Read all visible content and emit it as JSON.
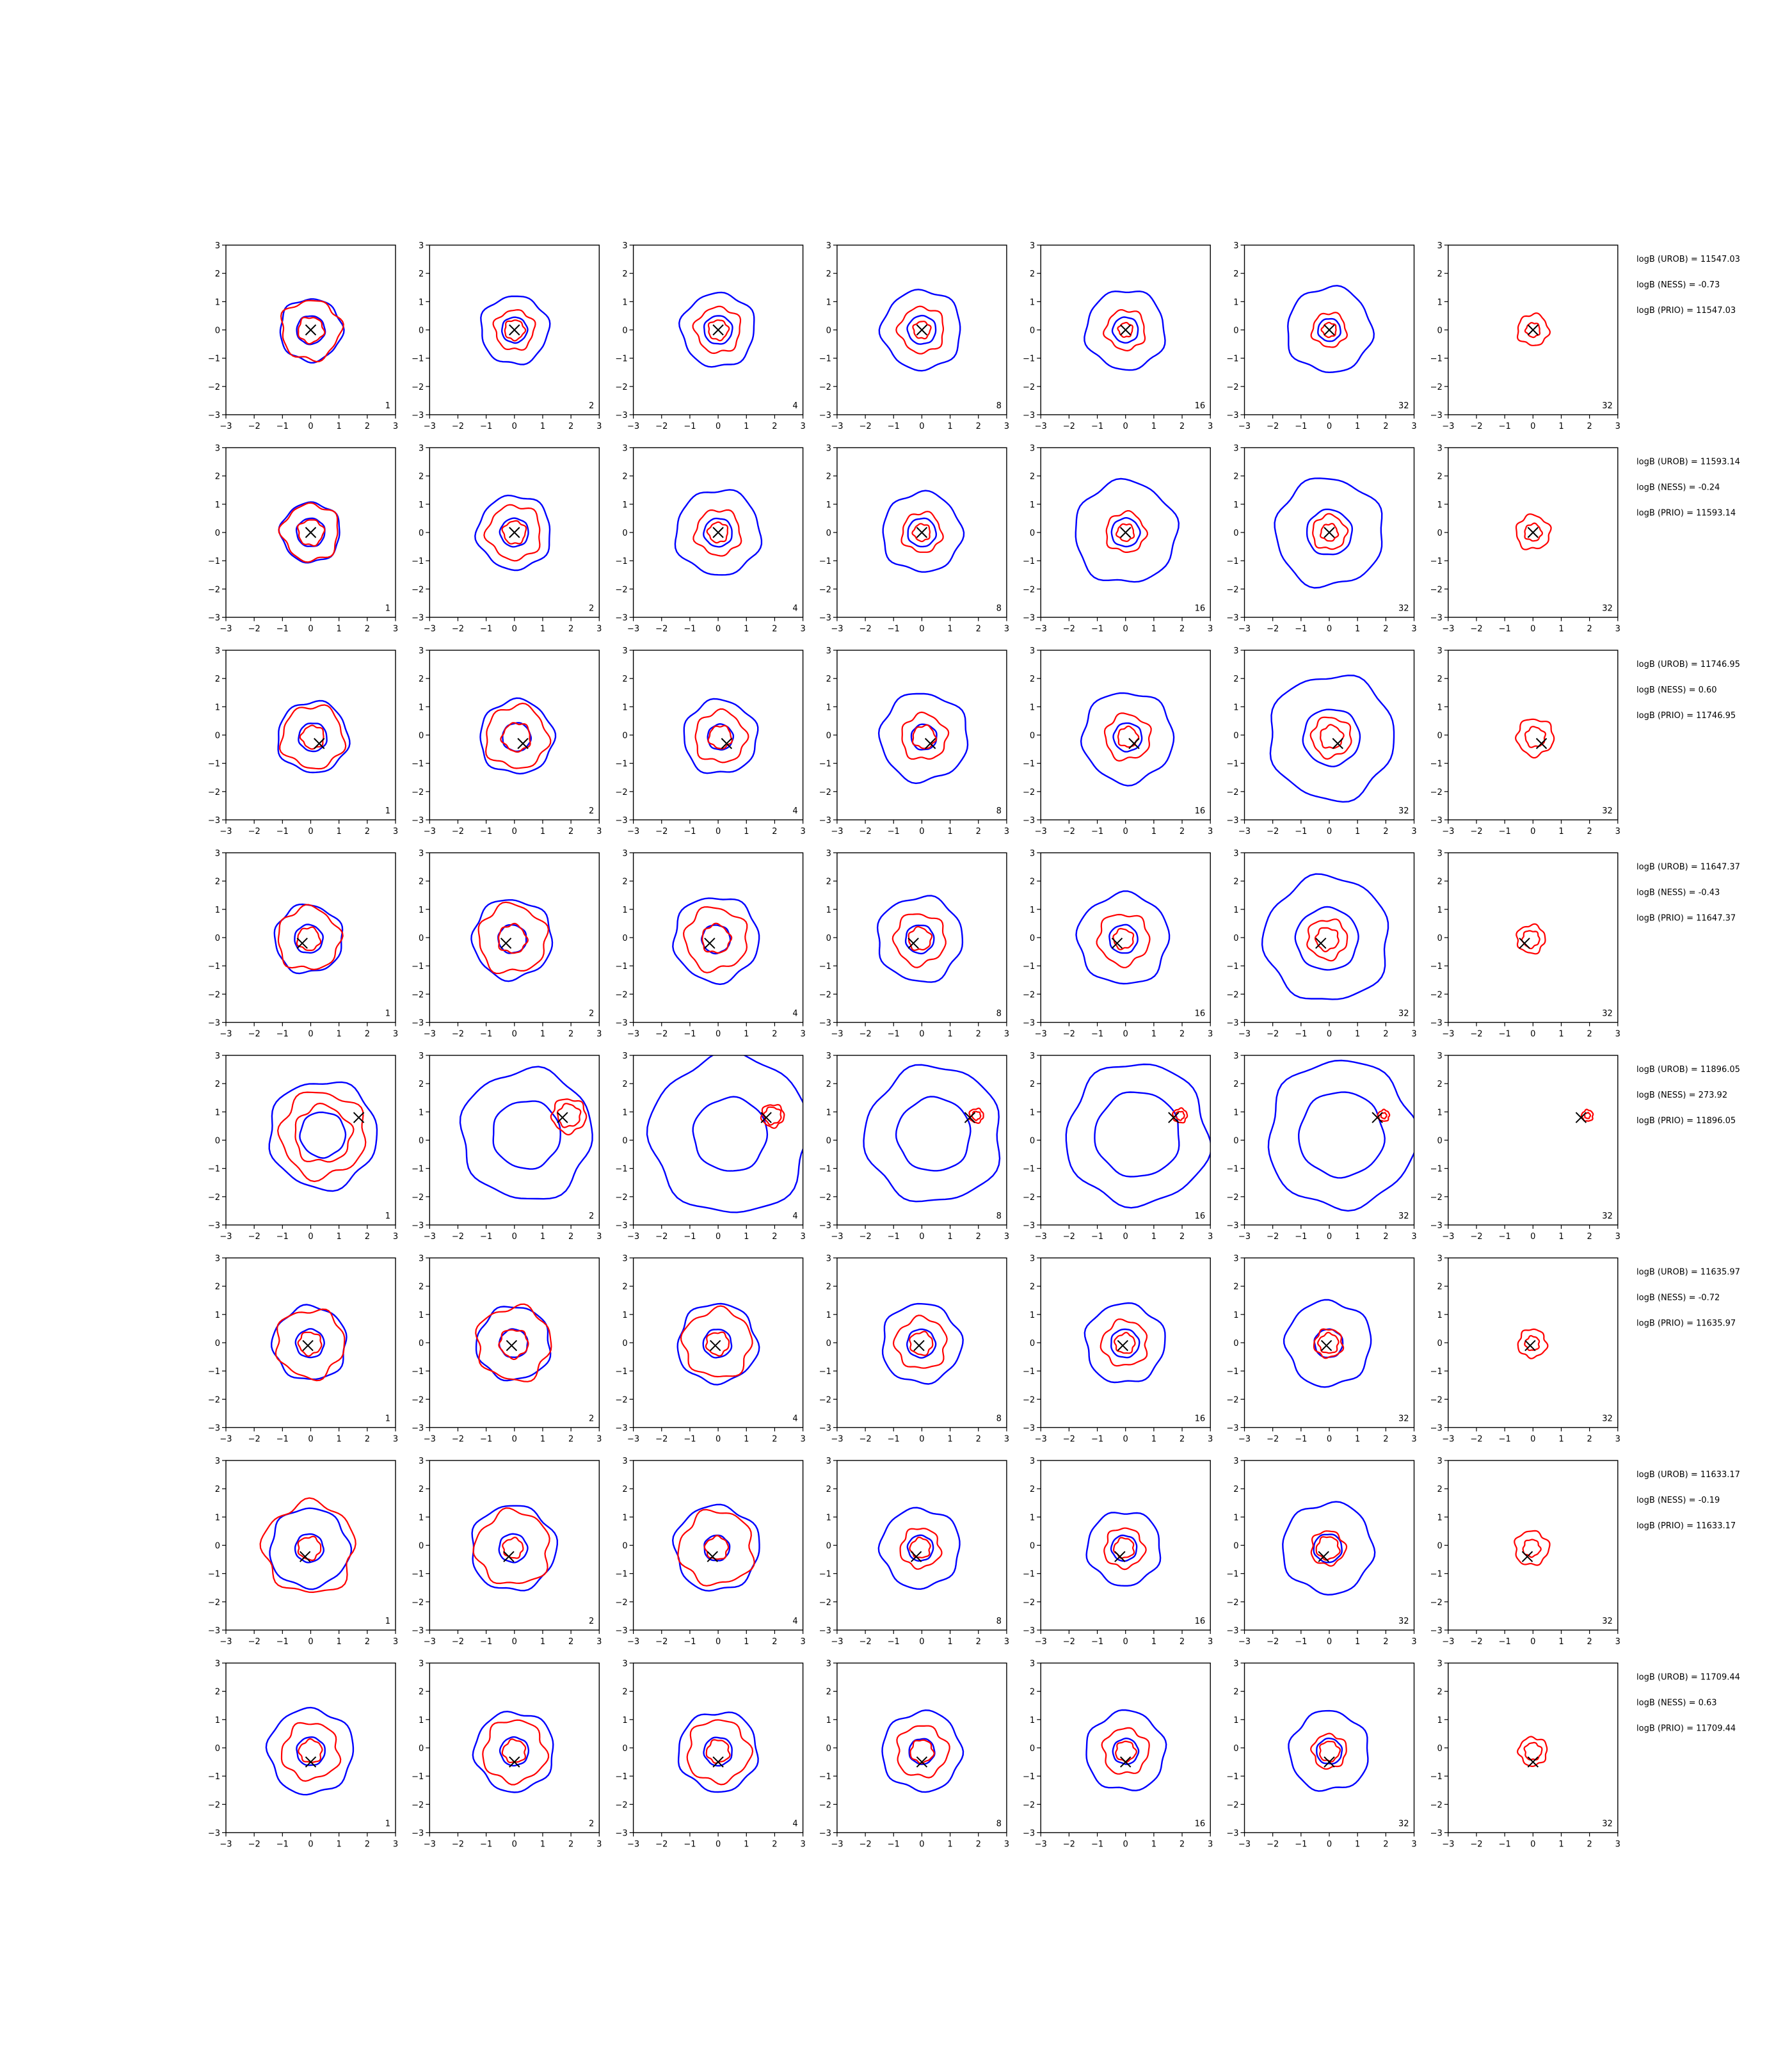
{
  "colors": {
    "outer": "#0000ff",
    "inner": "#ff0000",
    "marker": "#000000",
    "axes": "#000000"
  },
  "chart_data": {
    "type": "contour-grid",
    "xlim": [
      -3,
      3
    ],
    "ylim": [
      -3,
      3
    ],
    "xticks": [
      -3,
      -2,
      -1,
      0,
      1,
      2,
      3
    ],
    "yticks": [
      -3,
      -2,
      -1,
      0,
      1,
      2,
      3
    ],
    "grid": false,
    "rows": [
      {
        "marker": [
          0.0,
          0.0
        ],
        "panel_labels": [
          "1",
          "2",
          "4",
          "8",
          "16",
          "32",
          "32"
        ],
        "stats": [
          "logB (UROB) = 11547.03",
          "logB (NESS) = -0.73",
          "logB (PRIO) = 11547.03"
        ],
        "blue_rings": [
          [
            0.5,
            1.1
          ],
          [
            0.45,
            1.2
          ],
          [
            0.5,
            1.3
          ],
          [
            0.5,
            1.4
          ],
          [
            0.45,
            1.4
          ],
          [
            0.4,
            1.5
          ],
          []
        ],
        "red_rings": [
          [
            0.45,
            1.05
          ],
          [
            0.35,
            0.7
          ],
          [
            0.35,
            0.8
          ],
          [
            0.3,
            0.8
          ],
          [
            0.25,
            0.7
          ],
          [
            0.25,
            0.6
          ],
          [
            0.25,
            0.55
          ]
        ]
      },
      {
        "marker": [
          0.0,
          0.0
        ],
        "panel_labels": [
          "1",
          "2",
          "4",
          "8",
          "16",
          "32",
          "32"
        ],
        "stats": [
          "logB (UROB) = 11593.14",
          "logB (NESS) = -0.24",
          "logB (PRIO) = 11593.14"
        ],
        "blue_rings": [
          [
            0.5,
            1.05
          ],
          [
            0.5,
            1.3
          ],
          [
            0.5,
            1.5
          ],
          [
            0.5,
            1.4
          ],
          [
            0.5,
            1.8
          ],
          [
            0.8,
            1.9
          ],
          []
        ],
        "red_rings": [
          [
            0.45,
            1.0
          ],
          [
            0.4,
            0.95
          ],
          [
            0.35,
            0.8
          ],
          [
            0.3,
            0.7
          ],
          [
            0.3,
            0.7
          ],
          [
            0.3,
            0.6
          ],
          [
            0.3,
            0.6
          ]
        ]
      },
      {
        "marker": [
          0.3,
          -0.3
        ],
        "panel_labels": [
          "1",
          "2",
          "4",
          "8",
          "16",
          "32",
          "32"
        ],
        "stats": [
          "logB (UROB) = 11746.95",
          "logB (NESS) = 0.60",
          "logB (PRIO) = 11746.95"
        ],
        "blue_rings": [
          [
            0.5,
            1.25
          ],
          [
            0.5,
            1.3
          ],
          [
            0.45,
            1.3
          ],
          [
            0.45,
            1.55
          ],
          [
            0.5,
            1.6
          ],
          [
            1.0,
            2.2
          ],
          []
        ],
        "red_rings": [
          [
            0.4,
            1.1
          ],
          [
            0.5,
            1.1
          ],
          [
            0.4,
            0.9
          ],
          [
            0.4,
            0.8
          ],
          [
            0.35,
            0.8
          ],
          [
            0.4,
            0.7
          ],
          [
            0.35,
            0.65
          ]
        ]
      },
      {
        "marker": [
          -0.3,
          -0.2
        ],
        "panel_labels": [
          "1",
          "2",
          "4",
          "8",
          "16",
          "32",
          "32"
        ],
        "stats": [
          "logB (UROB) = 11647.37",
          "logB (NESS) = -0.43",
          "logB (PRIO) = 11647.37"
        ],
        "blue_rings": [
          [
            0.5,
            1.2
          ],
          [
            0.5,
            1.4
          ],
          [
            0.5,
            1.5
          ],
          [
            0.5,
            1.5
          ],
          [
            0.5,
            1.6
          ],
          [
            1.1,
            2.2
          ],
          []
        ],
        "red_rings": [
          [
            0.4,
            1.1
          ],
          [
            0.5,
            1.2
          ],
          [
            0.5,
            1.1
          ],
          [
            0.4,
            0.9
          ],
          [
            0.35,
            0.9
          ],
          [
            0.4,
            0.7
          ],
          [
            0.3,
            0.5
          ]
        ]
      },
      {
        "marker": [
          1.7,
          0.8
        ],
        "panel_labels": [
          "1",
          "2",
          "4",
          "8",
          "16",
          "32",
          "32"
        ],
        "stats": [
          "logB (UROB) = 11896.05",
          "logB (NESS) = 273.92",
          "logB (PRIO) = 11896.05"
        ],
        "blue_rings": [
          [
            0.8,
            1.9
          ],
          [
            1.2,
            2.3
          ],
          [
            1.3,
            2.8
          ],
          [
            1.3,
            2.4
          ],
          [
            1.5,
            2.5
          ],
          [
            1.5,
            2.6
          ],
          []
        ],
        "red_rings": [
          [
            1.0,
            1.5
          ],
          [
            0.4,
            0.6
          ],
          [
            0.3,
            0.4
          ],
          [
            0.15,
            0.25
          ],
          [
            0.15,
            0.25
          ],
          [
            0.1,
            0.2
          ],
          [
            0.1,
            0.2
          ]
        ]
      },
      {
        "marker": [
          -0.1,
          -0.1
        ],
        "panel_labels": [
          "1",
          "2",
          "4",
          "8",
          "16",
          "32",
          "32"
        ],
        "stats": [
          "logB (UROB) = 11635.97",
          "logB (NESS) = -0.72",
          "logB (PRIO) = 11635.97"
        ],
        "blue_rings": [
          [
            0.5,
            1.3
          ],
          [
            0.5,
            1.3
          ],
          [
            0.5,
            1.4
          ],
          [
            0.5,
            1.4
          ],
          [
            0.5,
            1.4
          ],
          [
            0.5,
            1.5
          ],
          []
        ],
        "red_rings": [
          [
            0.4,
            1.2
          ],
          [
            0.5,
            1.3
          ],
          [
            0.4,
            1.2
          ],
          [
            0.4,
            0.9
          ],
          [
            0.35,
            0.8
          ],
          [
            0.35,
            0.5
          ],
          [
            0.25,
            0.5
          ]
        ]
      },
      {
        "marker": [
          -0.2,
          -0.4
        ],
        "panel_labels": [
          "1",
          "2",
          "4",
          "8",
          "16",
          "32",
          "32"
        ],
        "stats": [
          "logB (UROB) = 11633.17",
          "logB (NESS) = -0.19",
          "logB (PRIO) = 11633.17"
        ],
        "blue_rings": [
          [
            0.5,
            1.4
          ],
          [
            0.5,
            1.5
          ],
          [
            0.45,
            1.5
          ],
          [
            0.45,
            1.4
          ],
          [
            0.45,
            1.3
          ],
          [
            0.5,
            1.6
          ],
          []
        ],
        "red_rings": [
          [
            0.4,
            1.6
          ],
          [
            0.35,
            1.3
          ],
          [
            0.4,
            1.3
          ],
          [
            0.35,
            0.7
          ],
          [
            0.35,
            0.7
          ],
          [
            0.4,
            0.6
          ],
          [
            0.3,
            0.6
          ]
        ]
      },
      {
        "marker": [
          0.0,
          -0.5
        ],
        "panel_labels": [
          "1",
          "2",
          "4",
          "8",
          "16",
          "32",
          "32"
        ],
        "stats": [
          "logB (UROB) = 11709.44",
          "logB (NESS) = 0.63",
          "logB (PRIO) = 11709.44"
        ],
        "blue_rings": [
          [
            0.5,
            1.5
          ],
          [
            0.5,
            1.4
          ],
          [
            0.5,
            1.4
          ],
          [
            0.45,
            1.4
          ],
          [
            0.45,
            1.4
          ],
          [
            0.45,
            1.4
          ],
          []
        ],
        "red_rings": [
          [
            0.4,
            1.0
          ],
          [
            0.4,
            1.1
          ],
          [
            0.4,
            1.1
          ],
          [
            0.4,
            0.9
          ],
          [
            0.35,
            0.8
          ],
          [
            0.35,
            0.6
          ],
          [
            0.3,
            0.5
          ]
        ]
      }
    ]
  }
}
